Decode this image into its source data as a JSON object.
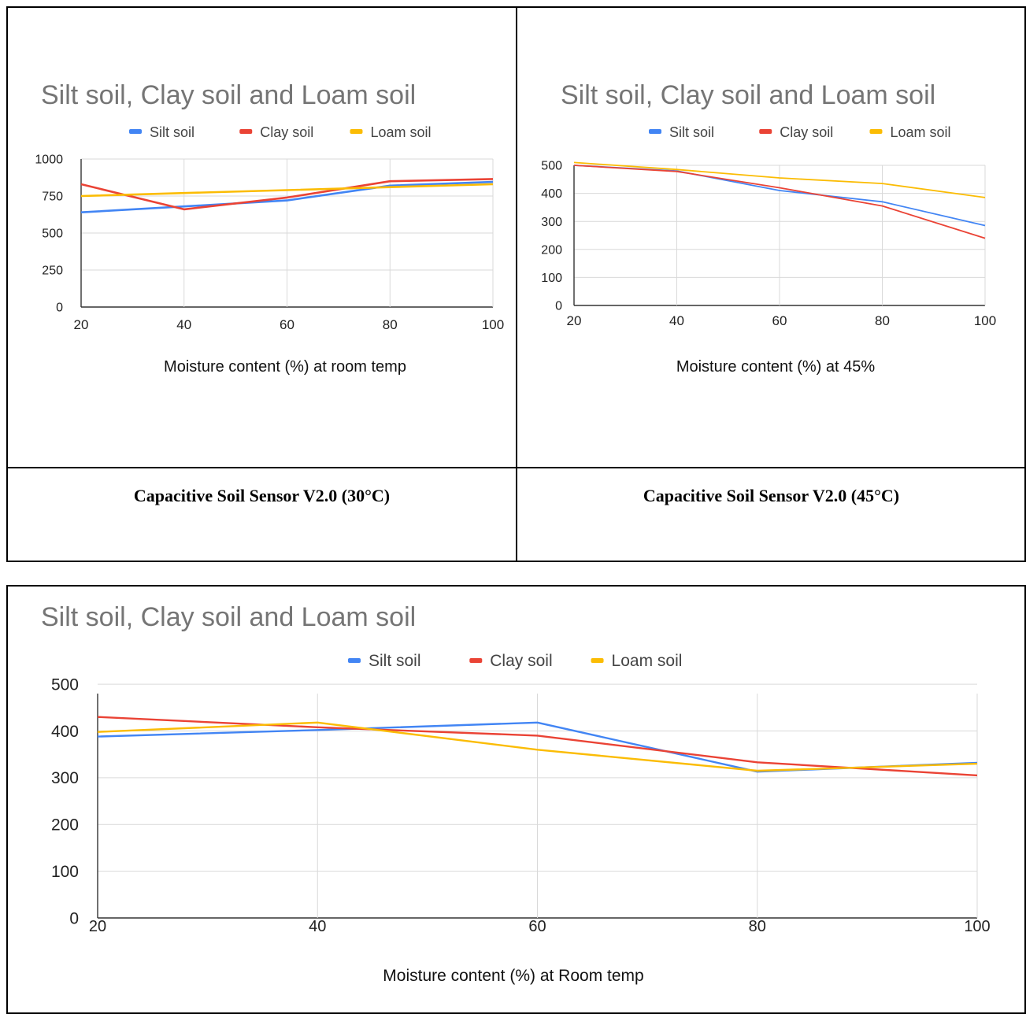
{
  "captions": {
    "left": "Capacitive Soil Sensor V2.0 (30°C)",
    "right": "Capacitive Soil Sensor V2.0 (45°C)"
  },
  "colors": {
    "silt": "#4285f4",
    "clay": "#ea4335",
    "loam": "#fbbc04",
    "title": "#757575",
    "grid": "#d9d9d9",
    "axis": "#333333"
  },
  "chart_data": [
    {
      "type": "line",
      "title": "Silt soil, Clay soil and Loam soil",
      "xlabel": "Moisture content (%) at room temp",
      "ylabel": "",
      "x": [
        20,
        40,
        60,
        80,
        100
      ],
      "yticks": [
        0,
        250,
        500,
        750,
        1000
      ],
      "xticks": [
        20,
        40,
        60,
        80,
        100
      ],
      "ylim": [
        0,
        1000
      ],
      "xlim": [
        20,
        100
      ],
      "legend": "top",
      "grid": true,
      "series": [
        {
          "name": "Silt soil",
          "color": "#4285f4",
          "values": [
            640,
            680,
            720,
            820,
            845
          ]
        },
        {
          "name": "Clay soil",
          "color": "#ea4335",
          "values": [
            830,
            660,
            740,
            850,
            865
          ]
        },
        {
          "name": "Loam soil",
          "color": "#fbbc04",
          "values": [
            750,
            770,
            790,
            810,
            830
          ]
        }
      ]
    },
    {
      "type": "line",
      "title": "Silt soil, Clay soil and Loam soil",
      "xlabel": "Moisture content (%) at 45%",
      "ylabel": "",
      "x": [
        20,
        40,
        60,
        80,
        100
      ],
      "yticks": [
        0,
        100,
        200,
        300,
        400,
        500
      ],
      "xticks": [
        20,
        40,
        60,
        80,
        100
      ],
      "ylim": [
        0,
        500
      ],
      "xlim": [
        20,
        100
      ],
      "legend": "top",
      "grid": true,
      "series": [
        {
          "name": "Silt soil",
          "color": "#4285f4",
          "values": [
            500,
            480,
            410,
            370,
            285
          ]
        },
        {
          "name": "Clay soil",
          "color": "#ea4335",
          "values": [
            500,
            478,
            420,
            355,
            240
          ]
        },
        {
          "name": "Loam soil",
          "color": "#fbbc04",
          "values": [
            510,
            485,
            455,
            435,
            385
          ]
        }
      ]
    },
    {
      "type": "line",
      "title": "Silt soil, Clay soil and Loam soil",
      "xlabel": "Moisture content (%) at Room temp",
      "ylabel": "",
      "x": [
        20,
        40,
        60,
        80,
        100
      ],
      "yticks": [
        0,
        100,
        200,
        300,
        400,
        500
      ],
      "xticks": [
        20,
        40,
        60,
        80,
        100
      ],
      "ylim": [
        0,
        480
      ],
      "xlim": [
        20,
        100
      ],
      "legend": "top",
      "grid": true,
      "series": [
        {
          "name": "Silt soil",
          "color": "#4285f4",
          "values": [
            388,
            402,
            418,
            313,
            332
          ]
        },
        {
          "name": "Clay soil",
          "color": "#ea4335",
          "values": [
            430,
            408,
            390,
            333,
            305
          ]
        },
        {
          "name": "Loam soil",
          "color": "#fbbc04",
          "values": [
            398,
            418,
            360,
            315,
            330
          ]
        }
      ]
    }
  ]
}
